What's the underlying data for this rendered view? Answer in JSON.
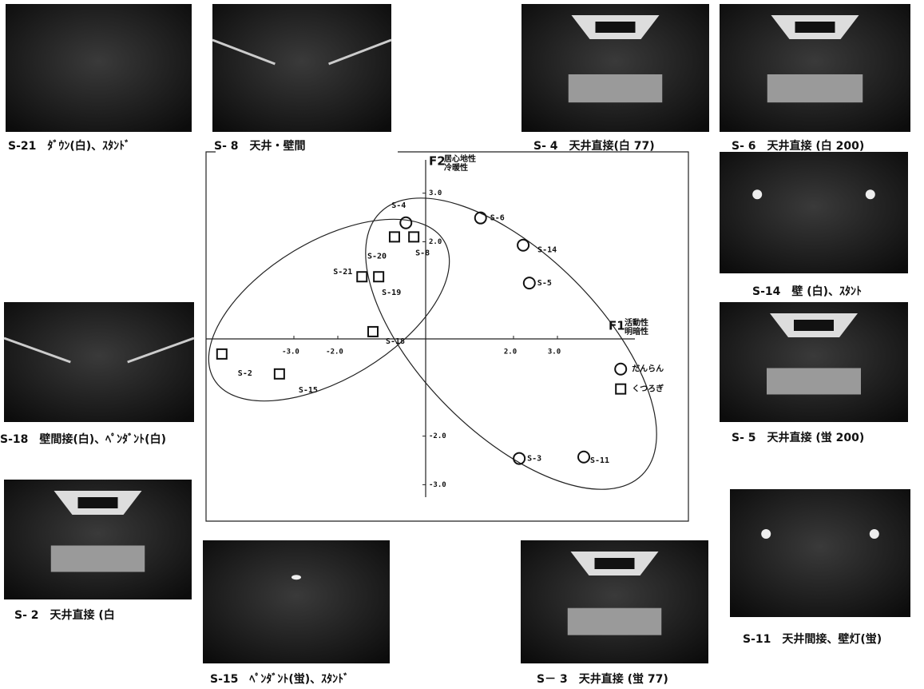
{
  "chart_data": {
    "type": "scatter",
    "x_label": "F1",
    "x_label_sub": [
      "活動性",
      "明暗性"
    ],
    "y_label": "F2",
    "y_label_sub": [
      "居心地性",
      "冷暖性"
    ],
    "xlim": [
      -5,
      6
    ],
    "ylim": [
      -3.75,
      3.85
    ],
    "xticks": [
      {
        "value": -3,
        "label": "-3.0"
      },
      {
        "value": -2,
        "label": "-2.0"
      },
      {
        "value": 2,
        "label": "2.0"
      },
      {
        "value": 3,
        "label": "3.0"
      }
    ],
    "yticks": [
      {
        "value": 3,
        "label": "3.0"
      },
      {
        "value": 2,
        "label": "2.0"
      },
      {
        "value": -2,
        "label": "-2.0"
      },
      {
        "value": -3,
        "label": "-3.0"
      }
    ],
    "series": [
      {
        "marker": "circle",
        "color": "#111111",
        "labels": [
          "S-4",
          "S-6",
          "S-14",
          "S-5",
          "S-3",
          "S-11",
          "だんらん"
        ],
        "x": [
          -0.45,
          1.25,
          2.22,
          2.36,
          2.13,
          3.6,
          4.44
        ],
        "y": [
          2.39,
          2.49,
          1.93,
          1.15,
          -2.46,
          -2.43,
          -0.62
        ]
      },
      {
        "marker": "square",
        "color": "#111111",
        "labels": [
          "S-20",
          "S-8",
          "S-21",
          "S-19",
          "S-18",
          "S-2",
          "S-15",
          "くつろぎ"
        ],
        "x": [
          -0.71,
          -0.27,
          -1.45,
          -1.07,
          -1.2,
          -4.64,
          -3.33,
          4.44
        ],
        "y": [
          2.1,
          2.1,
          1.28,
          1.28,
          0.15,
          -0.31,
          -0.72,
          -1.03
        ]
      }
    ]
  },
  "photos": [
    {
      "caption": "S-21　ﾀﾞｳﾝ(白)、ｽﾀﾝﾄﾞ"
    },
    {
      "caption": "S- 8　天井・壁間"
    },
    {
      "caption": "S- 4　天井直接(白 77)"
    },
    {
      "caption": "S- 6　天井直接 (白 200)"
    },
    {
      "caption": "S-14　壁 (白)、ｽﾀﾝﾄ"
    },
    {
      "caption": "S- 5　天井直接 (蛍 200)"
    },
    {
      "caption": "S-11　天井間接、壁灯(蛍)"
    },
    {
      "caption": "S-18　壁間接(白)、ﾍﾟﾝﾀﾞﾝﾄ(白)"
    },
    {
      "caption": "S- 2　天井直接 (白"
    },
    {
      "caption": "S-15　ﾍﾟﾝﾀﾞﾝﾄ(蛍)、ｽﾀﾝﾄﾞ"
    },
    {
      "caption": "S－ 3　天井直接 (蛍 77)"
    }
  ]
}
